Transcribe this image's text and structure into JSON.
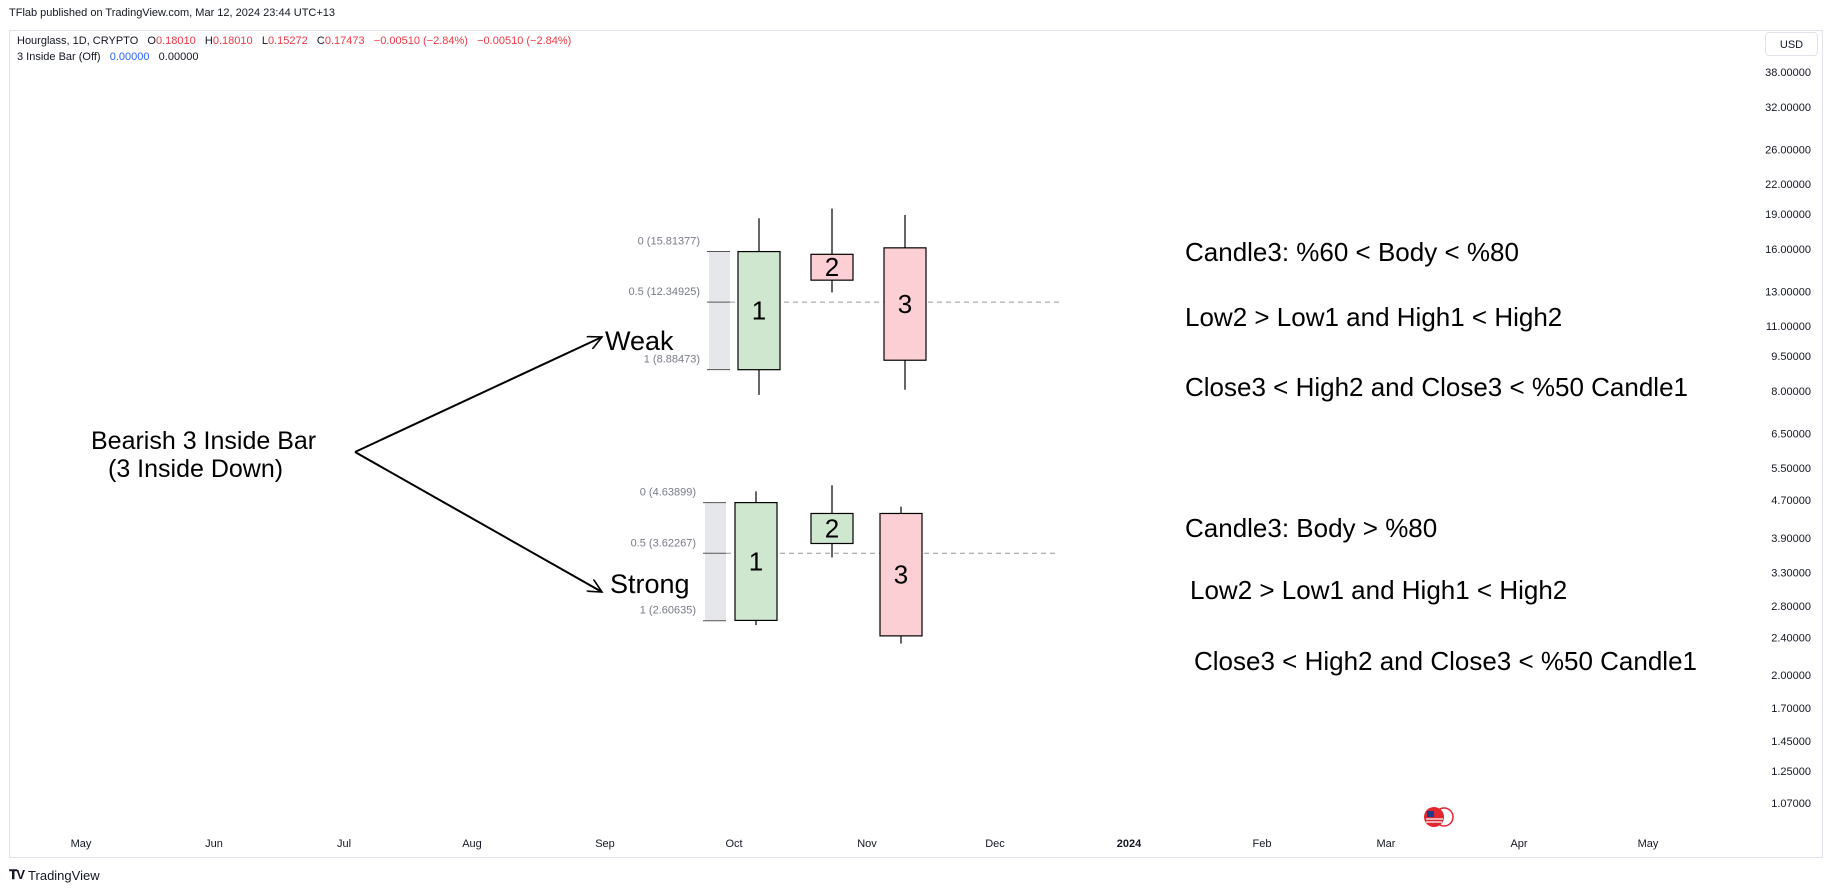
{
  "header": {
    "published": "TFlab published on TradingView.com, Mar 12, 2024 23:44 UTC+13"
  },
  "legend": {
    "symbol": "Hourglass, 1D, CRYPTO",
    "o_label": "O",
    "o_value": "0.18010",
    "h_label": "H",
    "h_value": "0.18010",
    "l_label": "L",
    "l_value": "0.15272",
    "c_label": "C",
    "c_value": "0.17473",
    "change1": "−0.00510 (−2.84%)",
    "change2": "−0.00510 (−2.84%)",
    "indicator": "3 Inside Bar (Off)",
    "ind_value1": "0.00000",
    "ind_value2": "0.00000"
  },
  "currency_button": "USD",
  "footer": {
    "brand": "TradingView"
  },
  "colors": {
    "bull_fill": "#cfe6cf",
    "bear_fill": "#fbcfd3",
    "down_text": "#f23645",
    "blue_value": "#2962ff",
    "fib_band": "#e6e7ea"
  },
  "chart_data": {
    "type": "candlestick",
    "scale": "log",
    "price_ticks": [
      "38.00000",
      "32.00000",
      "26.00000",
      "22.00000",
      "19.00000",
      "16.00000",
      "13.00000",
      "11.00000",
      "9.50000",
      "8.00000",
      "6.50000",
      "5.50000",
      "4.70000",
      "3.90000",
      "3.30000",
      "2.80000",
      "2.40000",
      "2.00000",
      "1.70000",
      "1.45000",
      "1.25000",
      "1.07000"
    ],
    "time_ticks": [
      "May",
      "Jun",
      "Jul",
      "Aug",
      "Sep",
      "Oct",
      "Nov",
      "Dec",
      "2024",
      "Feb",
      "Mar",
      "Apr",
      "May"
    ],
    "bold_time_tick": "2024",
    "groups": [
      {
        "label": "Weak",
        "fib": [
          {
            "label": "0 (15.81377)",
            "price": 15.81377
          },
          {
            "label": "0.5 (12.34925)",
            "price": 12.34925
          },
          {
            "label": "1 (8.88473)",
            "price": 8.88473
          }
        ],
        "candles": [
          {
            "label": "1",
            "dir": "bull",
            "open": 8.88,
            "close": 15.81,
            "high": 18.6,
            "low": 7.85
          },
          {
            "label": "2",
            "dir": "bear",
            "open": 15.6,
            "close": 13.75,
            "high": 19.5,
            "low": 12.95
          },
          {
            "label": "3",
            "dir": "bear",
            "open": 16.1,
            "close": 9.3,
            "high": 18.9,
            "low": 8.05
          }
        ],
        "conditions": [
          "Candle3: %60 < Body < %80",
          "Low2 > Low1 and High1 < High2",
          "Close3 < High2 and Close3 < %50 Candle1"
        ]
      },
      {
        "label": "Strong",
        "fib": [
          {
            "label": "0 (4.63899)",
            "price": 4.63899
          },
          {
            "label": "0.5 (3.62267)",
            "price": 3.62267
          },
          {
            "label": "1 (2.60635)",
            "price": 2.60635
          }
        ],
        "candles": [
          {
            "label": "1",
            "dir": "bull",
            "open": 2.61,
            "close": 4.64,
            "high": 4.9,
            "low": 2.55
          },
          {
            "label": "2",
            "dir": "bull",
            "open": 3.8,
            "close": 4.4,
            "high": 5.05,
            "low": 3.55
          },
          {
            "label": "3",
            "dir": "bear",
            "open": 4.4,
            "close": 2.42,
            "high": 4.55,
            "low": 2.33
          }
        ],
        "conditions": [
          "Candle3: Body > %80",
          "Low2 > Low1 and High1 < High2",
          "Close3 < High2 and Close3 < %50 Candle1"
        ]
      }
    ],
    "annotation": {
      "line1": "Bearish 3 Inside Bar",
      "line2": "(3 Inside Down)"
    }
  }
}
